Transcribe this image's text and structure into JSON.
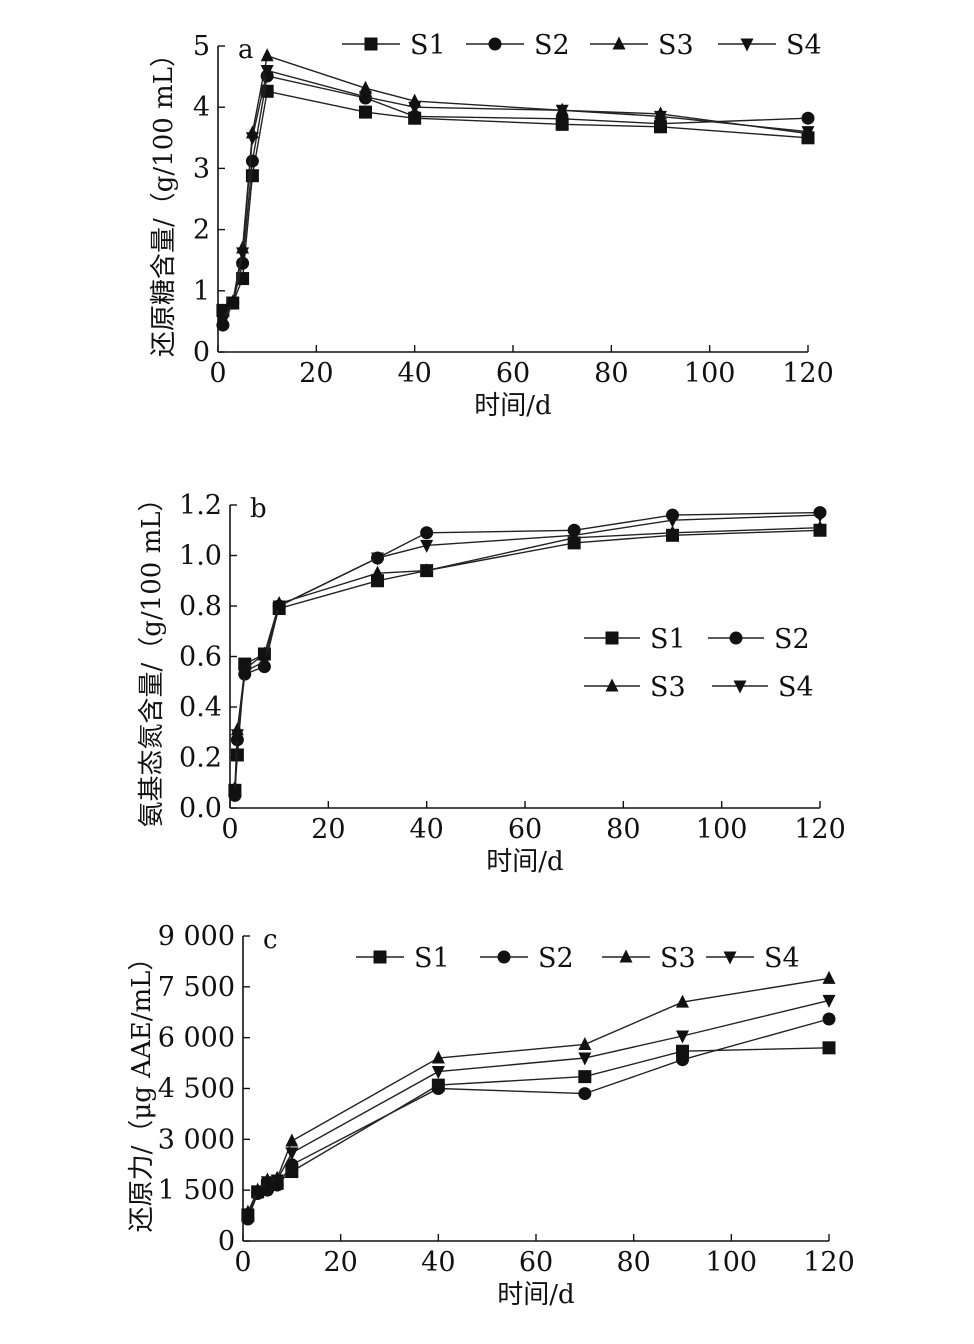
{
  "chart_data": [
    {
      "type": "line",
      "panel_label": "a",
      "xlabel": "时间/d",
      "ylabel": "还原糖含量/（g/100 mL）",
      "xlim": [
        0,
        120
      ],
      "ylim": [
        0,
        5
      ],
      "xticks": [
        0,
        20,
        40,
        60,
        80,
        100,
        120
      ],
      "xtick_labels": [
        "0",
        "20",
        "40",
        "60",
        "80",
        "100",
        "120"
      ],
      "yticks": [
        0,
        1,
        2,
        3,
        4,
        5
      ],
      "ytick_labels": [
        "0",
        "1",
        "2",
        "3",
        "4",
        "5"
      ],
      "legend_placement": "top",
      "x": [
        1,
        3,
        5,
        7,
        10,
        30,
        40,
        70,
        90,
        120
      ],
      "series": [
        {
          "name": "S1",
          "marker": "square",
          "values": [
            0.68,
            0.8,
            1.2,
            2.88,
            4.26,
            3.92,
            3.82,
            3.72,
            3.68,
            3.5
          ]
        },
        {
          "name": "S2",
          "marker": "circle",
          "values": [
            0.44,
            0.8,
            1.45,
            3.12,
            4.51,
            4.15,
            3.85,
            3.81,
            3.73,
            3.82
          ]
        },
        {
          "name": "S3",
          "marker": "triangle-up",
          "values": [
            0.54,
            0.82,
            1.7,
            3.58,
            4.84,
            4.31,
            4.1,
            3.95,
            3.89,
            3.57
          ]
        },
        {
          "name": "S4",
          "marker": "triangle-down",
          "values": [
            0.51,
            0.81,
            1.62,
            3.5,
            4.6,
            4.17,
            4.0,
            3.95,
            3.85,
            3.6
          ]
        }
      ]
    },
    {
      "type": "line",
      "panel_label": "b",
      "xlabel": "时间/d",
      "ylabel": "氨基态氮含量/（g/100 mL）",
      "xlim": [
        0,
        120
      ],
      "ylim": [
        0,
        1.2
      ],
      "xticks": [
        0,
        20,
        40,
        60,
        80,
        100,
        120
      ],
      "xtick_labels": [
        "0",
        "20",
        "40",
        "60",
        "80",
        "100",
        "120"
      ],
      "yticks": [
        0,
        0.2,
        0.4,
        0.6,
        0.8,
        1.0,
        1.2
      ],
      "ytick_labels": [
        "0.0",
        "0.2",
        "0.4",
        "0.6",
        "0.8",
        "1.0",
        "1.2"
      ],
      "legend_placement": "right-middle",
      "x": [
        1,
        1.5,
        3,
        7,
        10,
        30,
        40,
        70,
        90,
        120
      ],
      "series": [
        {
          "name": "S1",
          "marker": "square",
          "values": [
            0.07,
            0.21,
            0.57,
            0.61,
            0.79,
            0.9,
            0.94,
            1.05,
            1.08,
            1.1
          ]
        },
        {
          "name": "S2",
          "marker": "circle",
          "values": [
            0.05,
            0.27,
            0.53,
            0.56,
            0.8,
            0.99,
            1.09,
            1.1,
            1.16,
            1.17
          ]
        },
        {
          "name": "S3",
          "marker": "triangle-up",
          "values": [
            0.08,
            0.31,
            0.55,
            0.61,
            0.81,
            0.93,
            0.94,
            1.07,
            1.09,
            1.11
          ]
        },
        {
          "name": "S4",
          "marker": "triangle-down",
          "values": [
            0.06,
            0.29,
            0.54,
            0.58,
            0.8,
            0.99,
            1.04,
            1.08,
            1.14,
            1.16
          ]
        }
      ]
    },
    {
      "type": "line",
      "panel_label": "c",
      "xlabel": "时间/d",
      "ylabel": "还原力/（μg AAE/mL）",
      "xlim": [
        0,
        120
      ],
      "ylim": [
        0,
        9000
      ],
      "xticks": [
        0,
        20,
        40,
        60,
        80,
        100,
        120
      ],
      "xtick_labels": [
        "0",
        "20",
        "40",
        "60",
        "80",
        "100",
        "120"
      ],
      "yticks": [
        0,
        1500,
        3000,
        4500,
        6000,
        7500,
        9000
      ],
      "ytick_labels": [
        "0",
        "1 500",
        "3 000",
        "4 500",
        "6 000",
        "7 500",
        "9 000"
      ],
      "legend_placement": "top",
      "x": [
        1,
        3,
        5,
        7,
        10,
        40,
        70,
        90,
        120
      ],
      "series": [
        {
          "name": "S1",
          "marker": "square",
          "values": [
            750,
            1450,
            1650,
            1700,
            2050,
            4600,
            4850,
            5600,
            5700
          ]
        },
        {
          "name": "S2",
          "marker": "circle",
          "values": [
            650,
            1400,
            1500,
            1650,
            2250,
            4500,
            4350,
            5350,
            6550
          ]
        },
        {
          "name": "S3",
          "marker": "triangle-up",
          "values": [
            850,
            1500,
            1800,
            1850,
            2950,
            5400,
            5800,
            7050,
            7750
          ]
        },
        {
          "name": "S4",
          "marker": "triangle-down",
          "values": [
            800,
            1450,
            1750,
            1800,
            2600,
            5000,
            5400,
            6050,
            7100
          ]
        }
      ]
    }
  ]
}
